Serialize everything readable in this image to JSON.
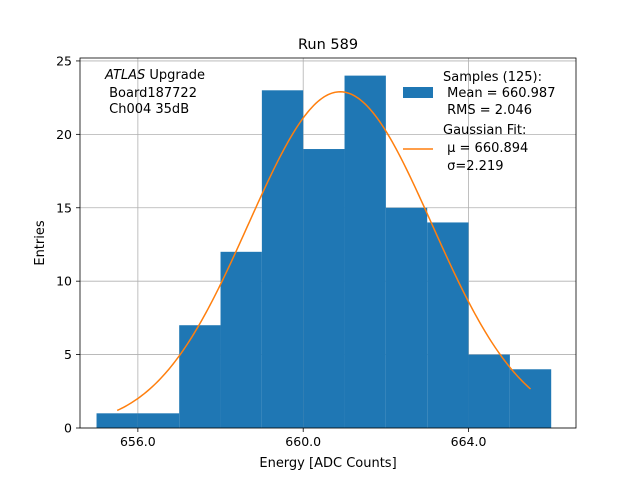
{
  "chart_data": {
    "type": "bar",
    "title": "Run 589",
    "xlabel": "Energy [ADC Counts]",
    "ylabel": "Entries",
    "xlim": [
      654.6,
      666.6
    ],
    "ylim": [
      0,
      25.2
    ],
    "grid": true,
    "xticks": [
      656,
      660,
      664
    ],
    "xtick_labels": [
      "656.0",
      "660.0",
      "664.0"
    ],
    "yticks": [
      0,
      5,
      10,
      15,
      20,
      25
    ],
    "ytick_labels": [
      "0",
      "5",
      "10",
      "15",
      "20",
      "25"
    ],
    "histogram": {
      "name": "Samples",
      "bin_edges": [
        655,
        656,
        657,
        658,
        659,
        660,
        661,
        662,
        663,
        664,
        665,
        666
      ],
      "counts": [
        1,
        1,
        7,
        12,
        23,
        19,
        24,
        15,
        14,
        5,
        4
      ],
      "color": "#1f77b4"
    },
    "fit": {
      "name": "Gaussian Fit",
      "type": "gaussian",
      "mu": 660.894,
      "sigma": 2.219,
      "peak": 22.9,
      "x_range": [
        655.5,
        665.5
      ],
      "color": "#ff7f0e"
    },
    "annotation_lines": [
      {
        "italic": "ATLAS",
        "text": " Upgrade"
      },
      {
        "italic": "",
        "text": " Board187722"
      },
      {
        "italic": "",
        "text": " Ch004 35dB"
      }
    ],
    "legend": {
      "placement": "top-right",
      "entries": [
        {
          "kind": "patch",
          "color": "#1f77b4",
          "lines": [
            "Samples (125):",
            " Mean = 660.987",
            " RMS = 2.046"
          ]
        },
        {
          "kind": "line",
          "color": "#ff7f0e",
          "lines": [
            "Gaussian Fit:",
            " μ = 660.894",
            " σ=2.219"
          ]
        }
      ]
    }
  }
}
